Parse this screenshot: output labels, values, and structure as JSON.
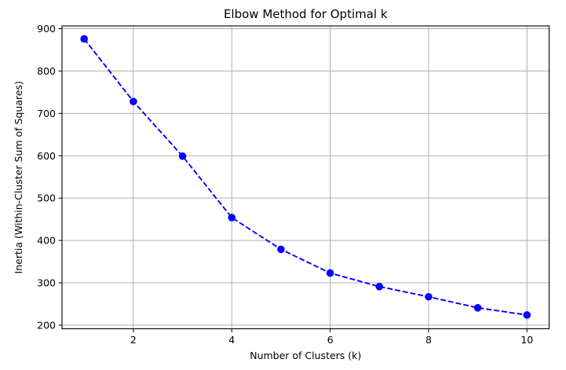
{
  "figure": {
    "background_color": "#ffffff"
  },
  "chart_data": {
    "type": "line",
    "title": "Elbow Method for Optimal k",
    "xlabel": "Number of Clusters (k)",
    "ylabel": "Inertia (Within-Cluster Sum of Squares)",
    "x": [
      1,
      2,
      3,
      4,
      5,
      6,
      7,
      8,
      9,
      10
    ],
    "y": [
      876,
      728,
      599,
      454,
      379,
      323,
      291,
      267,
      241,
      224
    ],
    "xticks": [
      2,
      4,
      6,
      8,
      10
    ],
    "yticks": [
      200,
      300,
      400,
      500,
      600,
      700,
      800,
      900
    ],
    "xlim": [
      0.55,
      10.45
    ],
    "ylim": [
      191.5,
      906.5
    ],
    "grid": true,
    "legend_position": "none",
    "line_color": "#0000ff",
    "line_style": "dashed",
    "marker": "circle",
    "marker_color": "#0000ff",
    "grid_color": "#b0b0b0",
    "spine_color": "#000000",
    "tick_color": "#000000",
    "text_color": "#000000",
    "plot_background": "#ffffff"
  }
}
